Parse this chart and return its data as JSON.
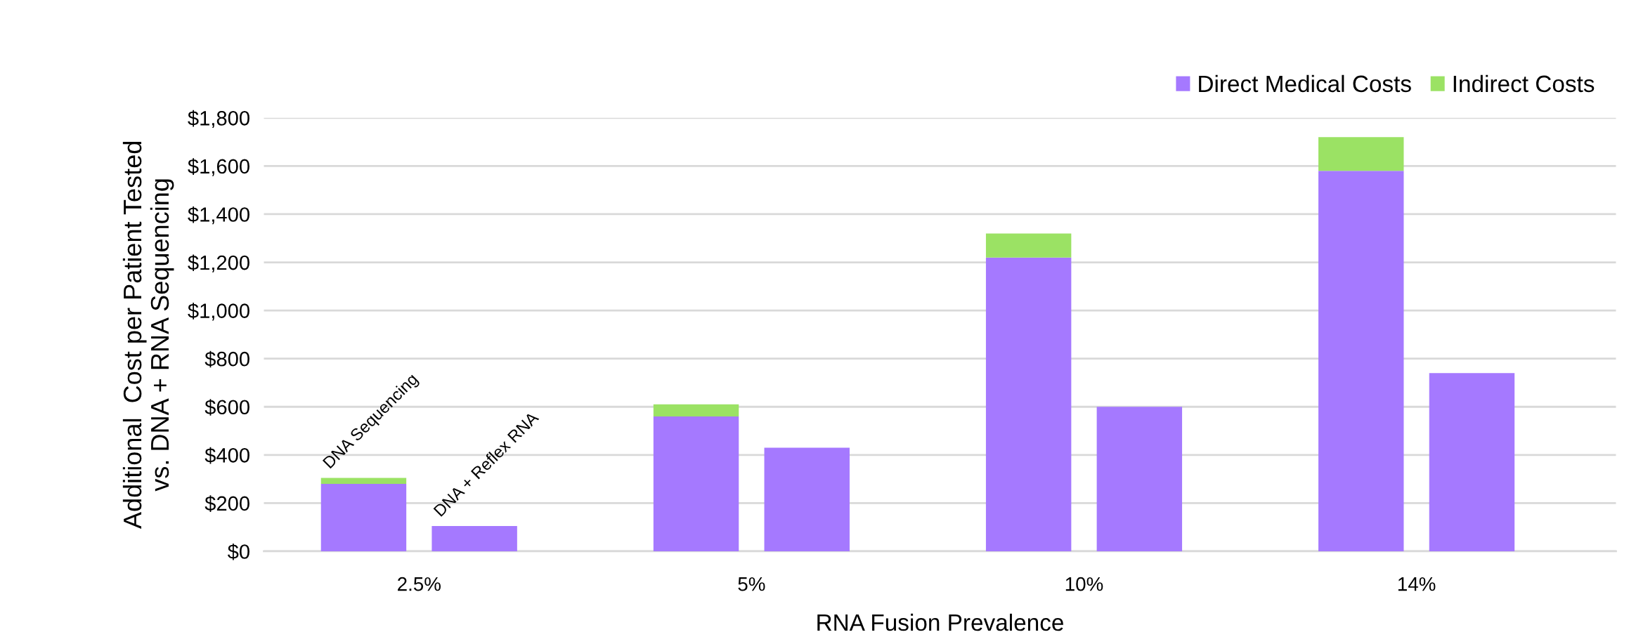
{
  "chart_data": {
    "type": "bar",
    "stacked": true,
    "xlabel": "RNA Fusion Prevalence",
    "ylabel": "Additional  Cost per Patient Tested\nvs. DNA + RNA Sequencing",
    "categories": [
      null,
      null,
      null,
      null,
      null,
      null,
      null,
      null
    ],
    "series": [
      {
        "name": "Direct Medical Costs",
        "color": "#a579ff",
        "values": [
          280,
          105,
          560,
          430,
          1220,
          600,
          1580,
          740
        ]
      },
      {
        "name": "Indirect Costs",
        "color": "#9be264",
        "values": [
          25,
          null,
          50,
          null,
          100,
          null,
          140,
          null
        ]
      }
    ],
    "annotations": [
      "DNA Sequencing",
      "DNA + Reflex RNA",
      "2.5%",
      "5%",
      "10%",
      "14%"
    ],
    "ylim": [
      0,
      1800
    ],
    "yticks": [
      {
        "value": 0,
        "label": "$0"
      },
      {
        "value": 200,
        "label": "$200"
      },
      {
        "value": 400,
        "label": "$400"
      },
      {
        "value": 600,
        "label": "$600"
      },
      {
        "value": 800,
        "label": "$800"
      },
      {
        "value": 1000,
        "label": "$1,000"
      },
      {
        "value": 1200,
        "label": "$1,200"
      },
      {
        "value": 1400,
        "label": "$1,400"
      },
      {
        "value": 1600,
        "label": "$1,600"
      },
      {
        "value": 1800,
        "label": "$1,800"
      }
    ],
    "grid": "y",
    "legend": "top right"
  }
}
